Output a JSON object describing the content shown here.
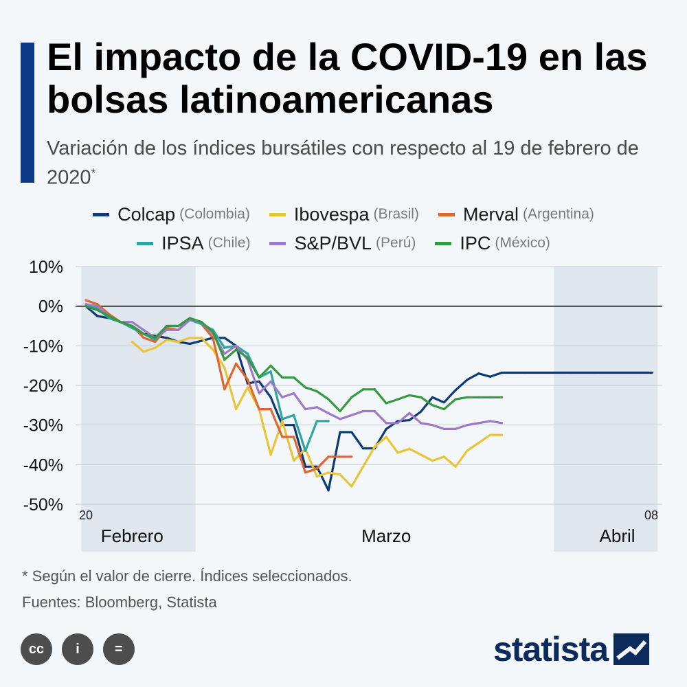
{
  "header": {
    "title": "El impacto de la COVID-19 en las bolsas latinoamericanas",
    "subtitle": "Variación de los índices bursátiles con respecto al 19 de febrero de 2020",
    "subtitle_mark": "*"
  },
  "legend": [
    {
      "name": "Colcap",
      "country": "(Colombia)",
      "color": "#0c3a75"
    },
    {
      "name": "Ibovespa",
      "country": "(Brasil)",
      "color": "#e8c436"
    },
    {
      "name": "Merval",
      "country": "(Argentina)",
      "color": "#e06530"
    },
    {
      "name": "IPSA",
      "country": "(Chile)",
      "color": "#2fa4a0"
    },
    {
      "name": "S&P/BVL",
      "country": "(Perú)",
      "color": "#9d7ac8"
    },
    {
      "name": "IPC",
      "country": "(México)",
      "color": "#34993f"
    }
  ],
  "chart_data": {
    "type": "line",
    "title": "El impacto de la COVID-19 en las bolsas latinoamericanas",
    "xlabel": "",
    "ylabel": "",
    "ylim": [
      -50,
      10
    ],
    "yticks": [
      10,
      0,
      -10,
      -20,
      -30,
      -40,
      -50
    ],
    "ytick_labels": [
      "10%",
      "0%",
      "-10%",
      "-20%",
      "-30%",
      "-40%",
      "-50%"
    ],
    "x_range": [
      20,
      69
    ],
    "x_start_label": "20",
    "x_end_label": "08",
    "month_labels": [
      {
        "label": "Febrero",
        "x": 24
      },
      {
        "label": "Marzo",
        "x": 46
      },
      {
        "label": "Abril",
        "x": 66
      }
    ],
    "shaded_ranges": [
      [
        19.6,
        29.5
      ],
      [
        60.5,
        69.5
      ]
    ],
    "grid": true,
    "series": [
      {
        "name": "Colcap",
        "color": "#0c3a75",
        "x": [
          20,
          21,
          22,
          23,
          24,
          25,
          26,
          27,
          28,
          29,
          31,
          32,
          33,
          34,
          35,
          36,
          37,
          38,
          39,
          40,
          41,
          42,
          43,
          44,
          45,
          46,
          47,
          48,
          49,
          50,
          51,
          52,
          53,
          54,
          55,
          56,
          57,
          58,
          59,
          60,
          61,
          62,
          63,
          64,
          65,
          66,
          67,
          68,
          69
        ],
        "values": [
          0,
          -2.5,
          -3,
          -4,
          -5,
          -7,
          -7.5,
          -8,
          -9,
          -9.5,
          -8,
          -8,
          -10,
          -19.5,
          -19,
          -23,
          -30,
          -30,
          -40.5,
          -40.5,
          -46.5,
          -31.8,
          -31.8,
          -35.9,
          -35.9,
          -31,
          -29,
          -28.8,
          -26.6,
          -23,
          -24.3,
          -21.2,
          -18.6,
          -17,
          -17.8,
          -16.8,
          -16.8,
          -16.8,
          -16.8,
          -16.8,
          -16.8,
          -16.8,
          -16.8,
          -16.8,
          -16.8,
          -16.8,
          -16.8,
          -16.8,
          -16.8
        ]
      },
      {
        "name": "Ibovespa",
        "color": "#e8c436",
        "x": [
          24,
          25,
          26,
          27,
          28,
          29,
          30,
          31,
          32,
          33,
          34,
          35,
          36,
          37,
          38,
          39,
          40,
          41,
          42,
          43,
          44,
          45,
          46,
          47,
          48,
          49,
          50,
          51,
          52,
          53,
          54,
          55,
          56
        ],
        "values": [
          -9,
          -11.5,
          -10.5,
          -8.5,
          -9,
          -8,
          -8,
          -11,
          -15.5,
          -26,
          -20.5,
          -26,
          -37.5,
          -29,
          -39,
          -36,
          -43,
          -42,
          -42.5,
          -45.5,
          -40.5,
          -35.5,
          -33,
          -37,
          -36,
          -37.5,
          -39,
          -38,
          -40.5,
          -36.5,
          -34.5,
          -32.5,
          -32.5
        ]
      },
      {
        "name": "Merval",
        "color": "#e06530",
        "x": [
          20,
          21,
          22,
          23,
          24,
          25,
          26,
          27,
          28,
          29,
          30,
          31,
          32,
          33,
          34,
          35,
          36,
          37,
          38,
          39,
          40,
          41,
          42,
          43
        ],
        "values": [
          1.5,
          0.5,
          -2,
          -4,
          -5,
          -8,
          -9,
          -5.5,
          -6,
          -3,
          -4.5,
          -8,
          -21,
          -14.5,
          -18.5,
          -26,
          -26,
          -33,
          -33,
          -42,
          -41,
          -38,
          -38,
          -38
        ]
      },
      {
        "name": "IPSA",
        "color": "#2fa4a0",
        "x": [
          20,
          21,
          22,
          23,
          24,
          25,
          26,
          27,
          28,
          29,
          30,
          31,
          32,
          33,
          34,
          35,
          36,
          37,
          38,
          39,
          40,
          41
        ],
        "values": [
          0,
          -0.5,
          -3,
          -4,
          -5.5,
          -7,
          -8.5,
          -5,
          -5,
          -3.5,
          -4.5,
          -6,
          -10.5,
          -10,
          -12,
          -18,
          -16.5,
          -28.5,
          -27.5,
          -36.5,
          -29,
          -29
        ]
      },
      {
        "name": "S&P/BVL",
        "color": "#9d7ac8",
        "x": [
          20,
          21,
          22,
          23,
          24,
          25,
          26,
          27,
          28,
          29,
          30,
          31,
          32,
          33,
          34,
          35,
          36,
          37,
          38,
          39,
          40,
          41,
          42,
          43,
          44,
          45,
          46,
          47,
          48,
          49,
          50,
          51,
          52,
          53,
          54,
          55,
          56
        ],
        "values": [
          0.5,
          0,
          -2.5,
          -4,
          -4,
          -6,
          -8,
          -6,
          -6,
          -3.5,
          -4,
          -7,
          -12,
          -10,
          -13.5,
          -22,
          -19,
          -23,
          -22,
          -26,
          -25.5,
          -27,
          -28.5,
          -27.5,
          -26.5,
          -26.5,
          -29.5,
          -29.5,
          -27,
          -29.5,
          -30,
          -31,
          -31,
          -30,
          -29.5,
          -29,
          -29.5
        ]
      },
      {
        "name": "IPC",
        "color": "#34993f",
        "x": [
          20,
          21,
          22,
          23,
          24,
          25,
          26,
          27,
          28,
          29,
          30,
          31,
          32,
          33,
          34,
          35,
          36,
          37,
          38,
          39,
          40,
          41,
          42,
          43,
          44,
          45,
          46,
          47,
          48,
          49,
          50,
          51,
          52,
          53,
          54,
          55,
          56
        ],
        "values": [
          0,
          -1,
          -2.5,
          -4,
          -5,
          -7,
          -8,
          -5,
          -5,
          -3,
          -4,
          -6.5,
          -13.5,
          -11,
          -13,
          -18,
          -15,
          -18,
          -18,
          -20.5,
          -21.5,
          -23.5,
          -26.5,
          -23,
          -21,
          -21,
          -24.5,
          -23.5,
          -22.5,
          -23,
          -25,
          -26,
          -23.5,
          -23,
          -23,
          -23,
          -23
        ]
      }
    ]
  },
  "footer": {
    "note": "* Según el valor de cierre. Índices seleccionados.",
    "sources": "Fuentes: Bloomberg, Statista",
    "license_icons": [
      "cc",
      "i",
      "="
    ],
    "brand": "statista"
  }
}
